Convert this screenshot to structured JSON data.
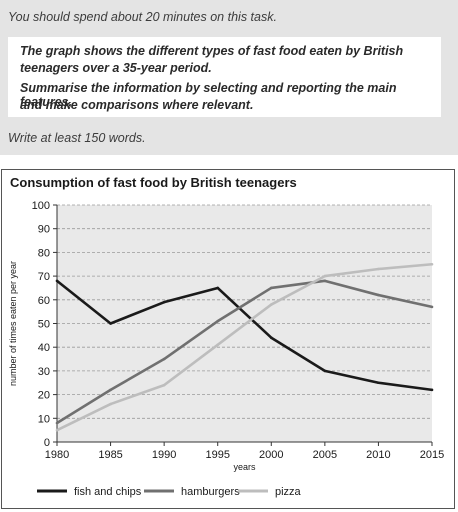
{
  "task": {
    "intro": "You should spend about 20 minutes on this task.",
    "prompt_line1": "The graph shows the different types of fast food eaten by British",
    "prompt_line2": "teenagers over a 35-year period.",
    "prompt_line3": "Summarise the information by selecting and reporting the main features,",
    "prompt_line4": "and make comparisons where relevant.",
    "word_count": "Write at least 150 words."
  },
  "chart_data": {
    "type": "line",
    "title": "Consumption of fast food by British teenagers",
    "xlabel": "years",
    "ylabel": "number of times eaten per year",
    "x": [
      1980,
      1985,
      1990,
      1995,
      2000,
      2005,
      2010,
      2015
    ],
    "ylim": [
      0,
      100
    ],
    "yticks": [
      0,
      10,
      20,
      30,
      40,
      50,
      60,
      70,
      80,
      90,
      100
    ],
    "grid": true,
    "legend": "bottom",
    "series": [
      {
        "name": "fish and chips",
        "color": "#1a1a1a",
        "values": [
          68,
          50,
          59,
          65,
          44,
          30,
          25,
          22
        ]
      },
      {
        "name": "hamburgers",
        "color": "#707070",
        "values": [
          8,
          22,
          35,
          51,
          65,
          68,
          62,
          57
        ]
      },
      {
        "name": "pizza",
        "color": "#bdbdbd",
        "values": [
          5,
          16,
          24,
          41,
          58,
          70,
          73,
          75
        ]
      }
    ]
  }
}
